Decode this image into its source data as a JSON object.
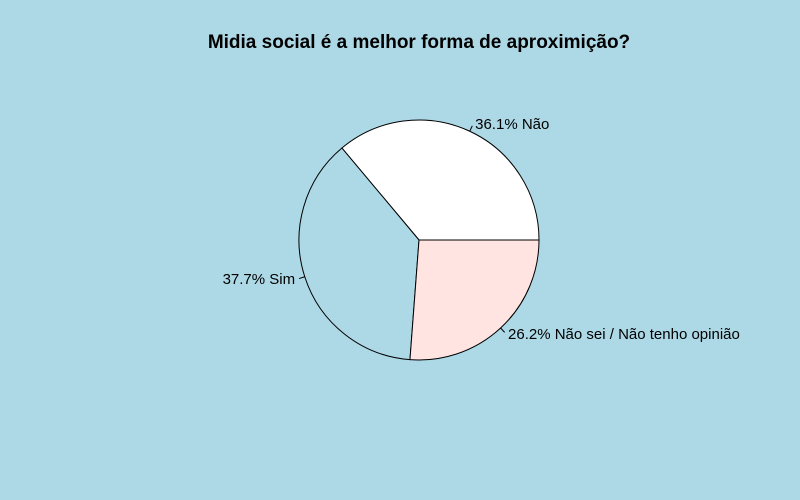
{
  "chart_data": {
    "type": "pie",
    "title": "Midia social é a melhor forma de aproximição?",
    "slices": [
      {
        "label": "Não",
        "value": 36.1,
        "display": "36.1% Não",
        "color": "#ffffff"
      },
      {
        "label": "Sim",
        "value": 37.7,
        "display": "37.7% Sim",
        "color": "#add8e6"
      },
      {
        "label": "Não sei / Não tenho opinião",
        "value": 26.2,
        "display": "26.2% Não sei / Não tenho opinião",
        "color": "#ffe4e1"
      }
    ],
    "start_angle_deg": 0,
    "direction": "counterclockwise",
    "background_color": "#add8e6",
    "legend": "none"
  }
}
